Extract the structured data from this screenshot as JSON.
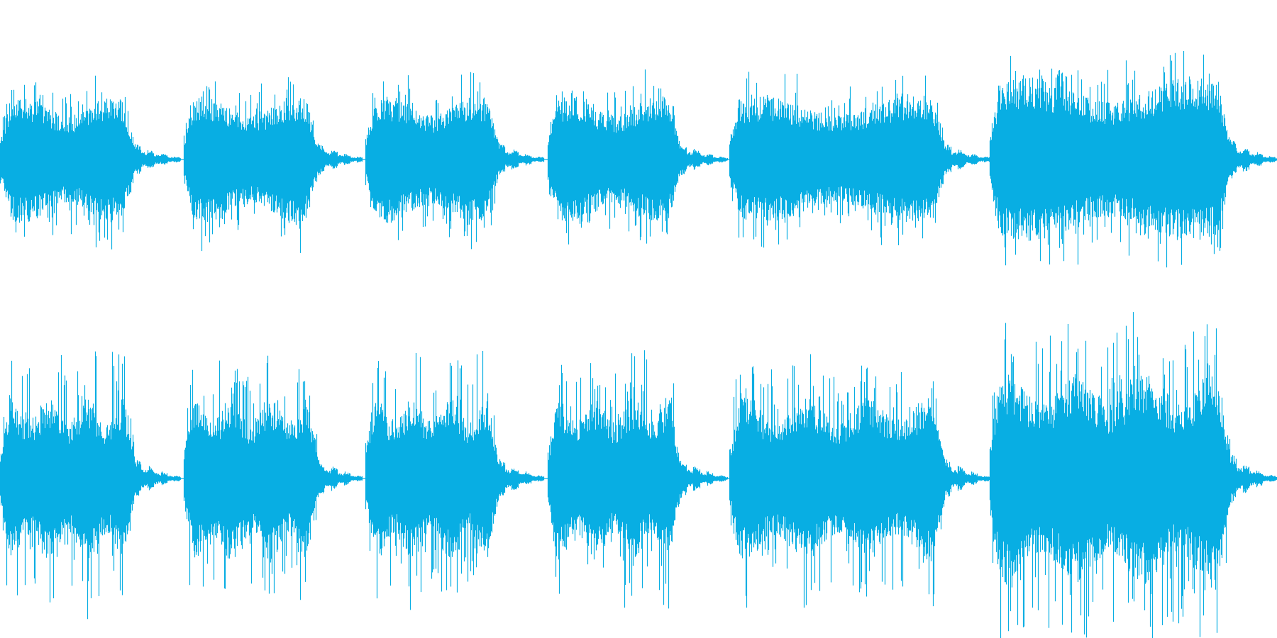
{
  "waveform": {
    "color": "#08aee3"
  }
}
